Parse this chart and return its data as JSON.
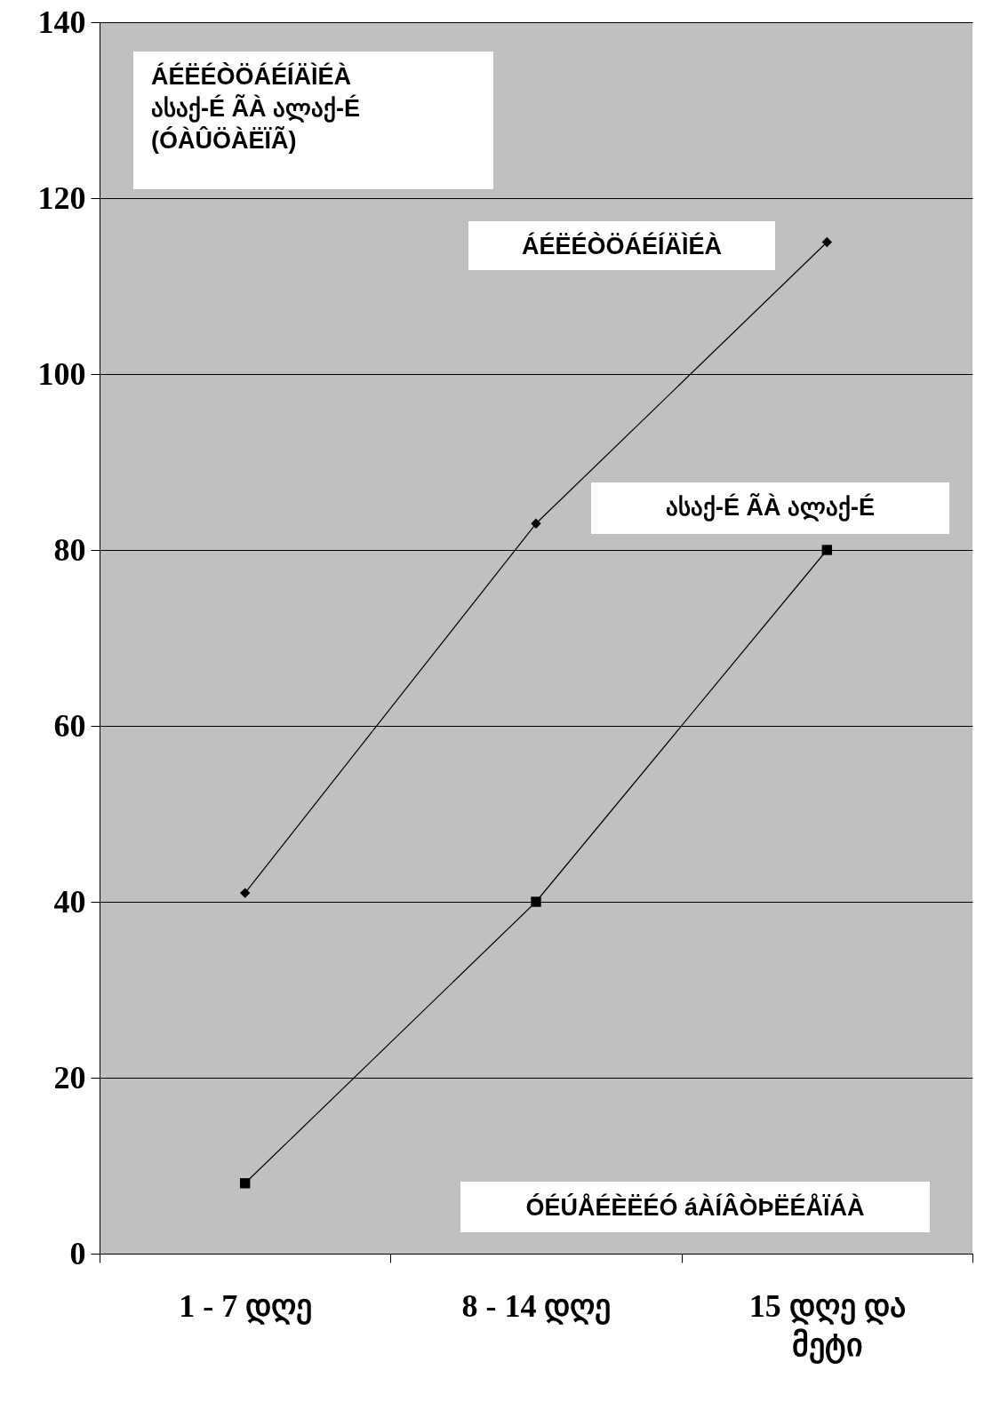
{
  "chart_data": {
    "type": "line",
    "categories": [
      "1 - 7 დღე",
      "8 - 14 დღე",
      "15 დღე და მეტი"
    ],
    "series": [
      {
        "name": "ÁÉËÉÒÖÁÉÍÄÌÉÀ",
        "color": "#000000",
        "marker": "diamond",
        "values": [
          41,
          83,
          115
        ]
      },
      {
        "name": "ასაქ-É ÃÀ ალაქ-É",
        "color": "#000000",
        "marker": "square",
        "values": [
          8,
          40,
          80
        ]
      }
    ],
    "xlabel": "ÓÉÚÅÉÈËÉÓ áÀÍÂÒÞËÉÅÏÁÀ",
    "annotations": [
      "ÁÉËÉÒÖÁÉÍÄÌÉÀ\nასაქ-É ÃÀ ალაქ-É\n(ÓÀÛÖÀËÏÃ)"
    ],
    "ylim": [
      0,
      140
    ],
    "yticks": [
      0,
      20,
      40,
      60,
      80,
      100,
      120,
      140
    ],
    "grid": "y",
    "legend": false
  }
}
